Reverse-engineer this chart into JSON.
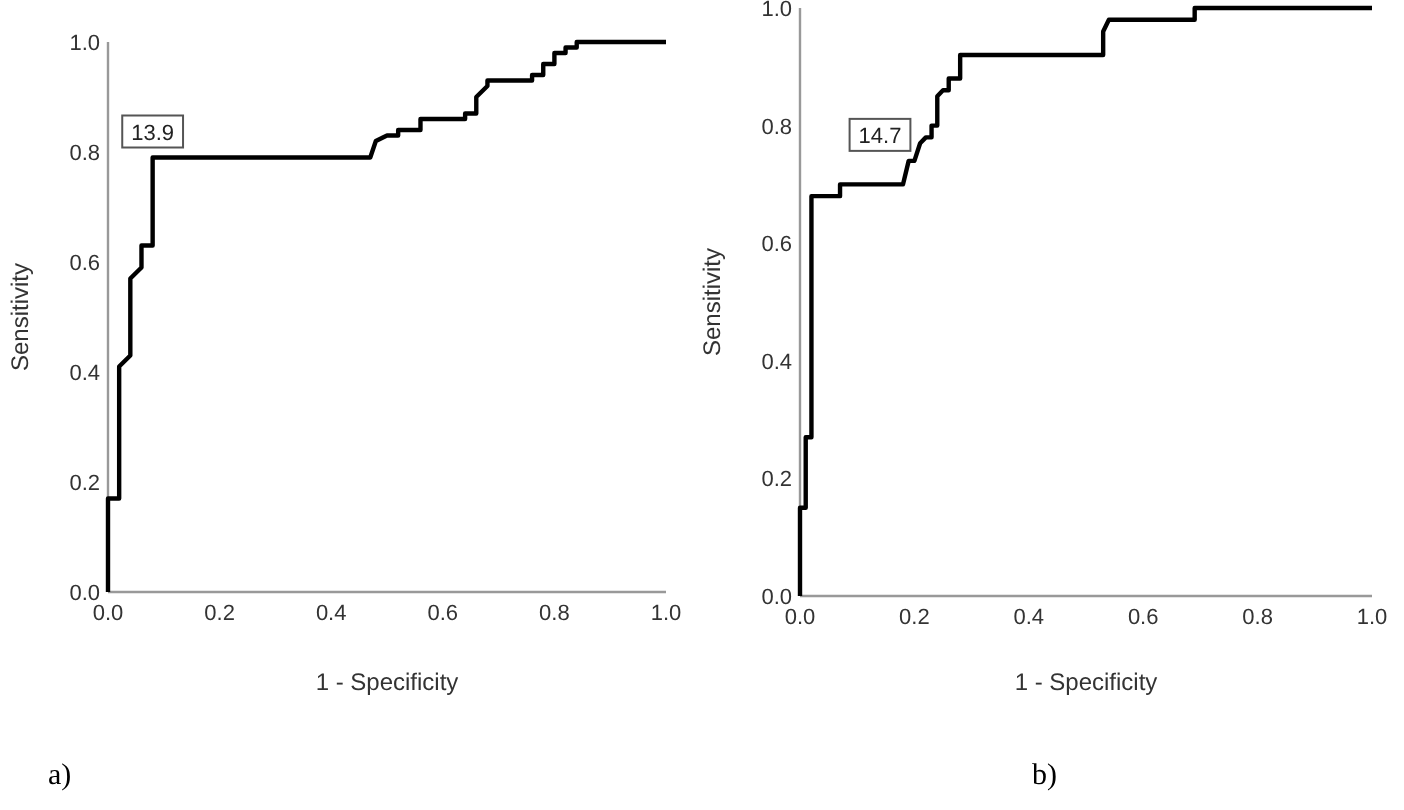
{
  "chart_data": [
    {
      "type": "line",
      "xlabel": "1 - Specificity",
      "ylabel": "Sensitivity",
      "xlim": [
        0,
        1
      ],
      "ylim": [
        0,
        1
      ],
      "xticks": [
        {
          "value": 0,
          "label": "0.0"
        },
        {
          "value": 0.2,
          "label": "0.2"
        },
        {
          "value": 0.4,
          "label": "0.4"
        },
        {
          "value": 0.6,
          "label": "0.6"
        },
        {
          "value": 0.8,
          "label": "0.8"
        },
        {
          "value": 1,
          "label": "1.0"
        }
      ],
      "yticks": [
        {
          "value": 0,
          "label": "0.0"
        },
        {
          "value": 0.2,
          "label": "0.2"
        },
        {
          "value": 0.4,
          "label": "0.4"
        },
        {
          "value": 0.6,
          "label": "0.6"
        },
        {
          "value": 0.8,
          "label": "0.8"
        },
        {
          "value": 1,
          "label": "1.0"
        }
      ],
      "grid": false,
      "marker": "none",
      "line_style": "solid",
      "series": [
        {
          "color": "#000000",
          "x": [
            0,
            0,
            0.02,
            0.02,
            0.04,
            0.04,
            0.06,
            0.06,
            0.08,
            0.08,
            0.47,
            0.48,
            0.5,
            0.52,
            0.52,
            0.56,
            0.56,
            0.64,
            0.64,
            0.66,
            0.66,
            0.68,
            0.68,
            0.76,
            0.76,
            0.78,
            0.78,
            0.8,
            0.8,
            0.82,
            0.82,
            0.84,
            0.84,
            1
          ],
          "values": [
            0,
            0.17,
            0.17,
            0.41,
            0.43,
            0.57,
            0.59,
            0.63,
            0.63,
            0.79,
            0.79,
            0.82,
            0.83,
            0.83,
            0.84,
            0.84,
            0.86,
            0.86,
            0.87,
            0.87,
            0.9,
            0.92,
            0.93,
            0.93,
            0.94,
            0.94,
            0.96,
            0.96,
            0.98,
            0.98,
            0.99,
            0.99,
            1,
            1
          ]
        }
      ],
      "annotations": [
        {
          "text": "13.9",
          "x": 0.08,
          "y": 0.79
        },
        "a)"
      ]
    },
    {
      "type": "line",
      "xlabel": "1 - Specificity",
      "ylabel": "Sensitivity",
      "xlim": [
        0,
        1
      ],
      "ylim": [
        0,
        1
      ],
      "xticks": [
        {
          "value": 0,
          "label": "0.0"
        },
        {
          "value": 0.2,
          "label": "0.2"
        },
        {
          "value": 0.4,
          "label": "0.4"
        },
        {
          "value": 0.6,
          "label": "0.6"
        },
        {
          "value": 0.8,
          "label": "0.8"
        },
        {
          "value": 1,
          "label": "1.0"
        }
      ],
      "yticks": [
        {
          "value": 0,
          "label": "0.0"
        },
        {
          "value": 0.2,
          "label": "0.2"
        },
        {
          "value": 0.4,
          "label": "0.4"
        },
        {
          "value": 0.6,
          "label": "0.6"
        },
        {
          "value": 0.8,
          "label": "0.8"
        },
        {
          "value": 1,
          "label": "1.0"
        }
      ],
      "grid": false,
      "marker": "none",
      "line_style": "solid",
      "series": [
        {
          "color": "#000000",
          "x": [
            0,
            0,
            0.01,
            0.01,
            0.02,
            0.02,
            0.07,
            0.07,
            0.18,
            0.19,
            0.2,
            0.21,
            0.22,
            0.23,
            0.23,
            0.24,
            0.24,
            0.25,
            0.26,
            0.26,
            0.28,
            0.28,
            0.53,
            0.53,
            0.54,
            0.69,
            0.69,
            1
          ],
          "values": [
            0,
            0.15,
            0.15,
            0.27,
            0.27,
            0.68,
            0.68,
            0.7,
            0.7,
            0.74,
            0.74,
            0.77,
            0.78,
            0.78,
            0.8,
            0.8,
            0.85,
            0.86,
            0.86,
            0.88,
            0.88,
            0.92,
            0.92,
            0.96,
            0.98,
            0.98,
            1,
            1
          ]
        }
      ],
      "annotations": [
        {
          "text": "14.7",
          "x": 0.2,
          "y": 0.74
        },
        "b)"
      ]
    }
  ]
}
